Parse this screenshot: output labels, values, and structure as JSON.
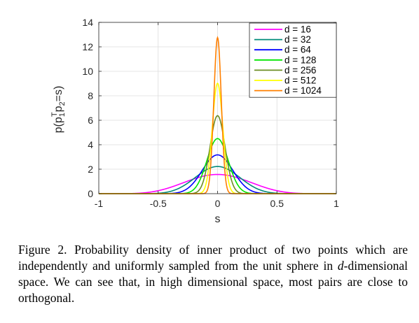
{
  "chart_data": {
    "type": "line",
    "xlabel": "s",
    "ylabel_parts": {
      "base": "p(p",
      "sub1": "1",
      "sup": "T",
      "mid": "p",
      "sub2": "2",
      "end": "=s)"
    },
    "xlim": [
      -1,
      1
    ],
    "ylim": [
      0,
      14
    ],
    "xticks": [
      -1,
      -0.5,
      0,
      0.5,
      1
    ],
    "yticks": [
      0,
      2,
      4,
      6,
      8,
      10,
      12,
      14
    ],
    "grid": true,
    "legend_position": "top-right",
    "series": [
      {
        "name": "d = 16",
        "d": 16,
        "color": "#ff00ff",
        "peak": 1.57
      },
      {
        "name": "d = 32",
        "d": 32,
        "color": "#008b7a",
        "peak": 2.22
      },
      {
        "name": "d = 64",
        "d": 64,
        "color": "#0000ff",
        "peak": 3.17
      },
      {
        "name": "d = 128",
        "d": 128,
        "color": "#00e600",
        "peak": 4.5
      },
      {
        "name": "d = 256",
        "d": 256,
        "color": "#6b8e23",
        "peak": 6.37
      },
      {
        "name": "d = 512",
        "d": 512,
        "color": "#ffff00",
        "peak": 9.02
      },
      {
        "name": "d = 1024",
        "d": 1024,
        "color": "#ff7f00",
        "peak": 12.76
      }
    ]
  },
  "caption": {
    "label": "Figure 2.",
    "text_before": "Probability density of inner product of two points which are independently and uniformly sampled from the unit sphere in",
    "italic": "d",
    "text_after": "-dimensional space. We can see that, in high dimensional space, most pairs are close to orthogonal."
  }
}
